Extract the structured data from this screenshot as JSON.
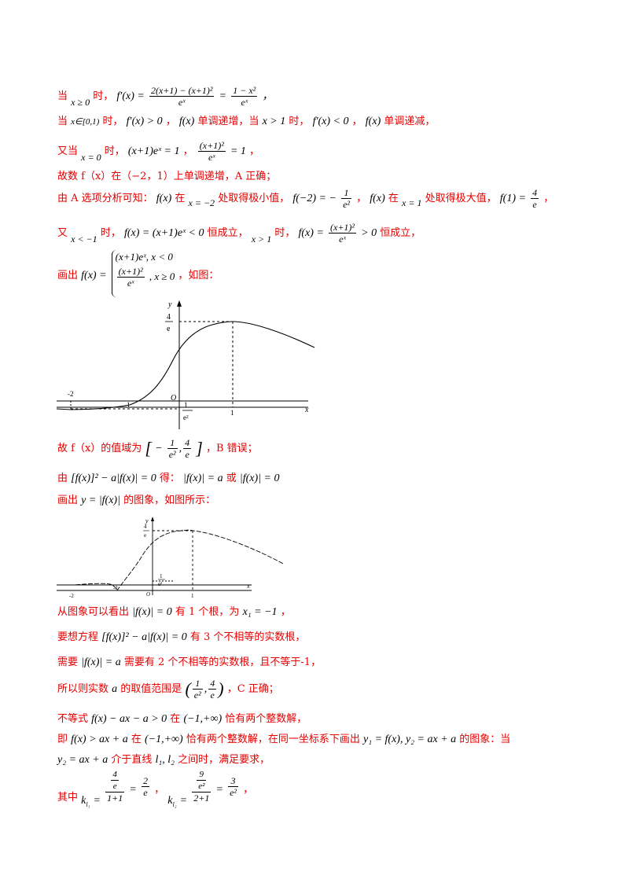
{
  "lines": {
    "l1_a": "当",
    "l1_cond": "x ≥ 0",
    "l1_b": "时，",
    "l1_expr": "f′(x) =",
    "l1_num1": "2(x+1) − (x+1)²",
    "l1_den1": "eˣ",
    "l1_eq": "=",
    "l1_num2": "1 − x²",
    "l1_den2": "eˣ",
    "l1_end": "，",
    "l2_a": "当",
    "l2_cond": "x∈[0,1)",
    "l2_b": "时，",
    "l2_expr1": "f′(x) > 0",
    "l2_c": "，",
    "l2_expr2": "f(x)",
    "l2_d": "单调递增，当",
    "l2_cond2": "x > 1",
    "l2_e": "时，",
    "l2_expr3": "f′(x) < 0",
    "l2_f": "，",
    "l2_expr4": "f(x)",
    "l2_g": "单调递减，",
    "l3_a": "又当",
    "l3_cond": "x = 0",
    "l3_b": "时，",
    "l3_expr1": "(x+1)eˣ = 1",
    "l3_c": "，",
    "l3_num": "(x+1)²",
    "l3_den": "eˣ",
    "l3_expr2": "= 1",
    "l3_d": "，",
    "l4": "故数 f（x）在（−2，1）上单调递增，A 正确；",
    "l5_a": "由 A 选项分析可知：",
    "l5_expr1": "f(x)",
    "l5_b": "在",
    "l5_cond1": "x = −2",
    "l5_c": "处取得极小值，",
    "l5_expr2": "f(−2) = −",
    "l5_num1": "1",
    "l5_den1": "e²",
    "l5_d": "，",
    "l5_expr3": "f(x)",
    "l5_e": "在",
    "l5_cond2": "x = 1",
    "l5_f": "处取得极大值，",
    "l5_expr4": "f(1) =",
    "l5_num2": "4",
    "l5_den2": "e",
    "l5_g": "，",
    "l6_a": "又",
    "l6_cond1": "x < −1",
    "l6_b": "时，",
    "l6_expr1": "f(x) = (x+1)eˣ < 0",
    "l6_c": "恒成立，",
    "l6_cond2": "x > 1",
    "l6_d": "时，",
    "l6_expr2": "f(x) =",
    "l6_num": "(x+1)²",
    "l6_den": "eˣ",
    "l6_expr3": "> 0",
    "l6_e": "恒成立，",
    "l7_a": "画出",
    "l7_expr": "f(x) =",
    "l7_case1": "(x+1)eˣ, x < 0",
    "l7_case2_num": "(x+1)²",
    "l7_case2_den": "eˣ",
    "l7_case2": ", x ≥ 0",
    "l7_b": "，如图：",
    "l8_a": "故 f（x）的值域为",
    "l8_num1": "1",
    "l8_den1": "e²",
    "l8_num2": "4",
    "l8_den2": "e",
    "l8_b": "，B 错误；",
    "l9_a": "由",
    "l9_expr1": "[f(x)]² − a|f(x)| = 0",
    "l9_b": "得：",
    "l9_expr2": "|f(x)| = a",
    "l9_c": "或",
    "l9_expr3": "|f(x)| = 0",
    "l10_a": "画出",
    "l10_expr": "y = |f(x)|",
    "l10_b": "的图象，如图所示：",
    "l11_a": "从图象可以看出",
    "l11_expr1": "|f(x)| = 0",
    "l11_b": "有 1 个根，为",
    "l11_expr2": "x₁ = −1",
    "l11_c": "，",
    "l12_a": "要想方程",
    "l12_expr": "[f(x)]² − a|f(x)| = 0",
    "l12_b": "有 3 个不相等的实数根，",
    "l13_a": "需要",
    "l13_expr": "|f(x)| = a",
    "l13_b": "需要有 2 个不相等的实数根，且不等于-1，",
    "l14_a": "所以则实数",
    "l14_var": "a",
    "l14_b": "的取值范围是",
    "l14_num1": "1",
    "l14_den1": "e²",
    "l14_num2": "4",
    "l14_den2": "e",
    "l14_c": "，C 正确；",
    "l15_a": "不等式",
    "l15_expr1": "f(x) − ax − a > 0",
    "l15_b": "在",
    "l15_expr2": "(−1,+∞)",
    "l15_c": "恰有两个整数解，",
    "l16_a": "即",
    "l16_expr1": "f(x) > ax + a",
    "l16_b": "在",
    "l16_expr2": "(−1,+∞)",
    "l16_c": "恰有两个整数解，在同一坐标系下画出",
    "l16_expr3": "y₁ = f(x), y₂ = ax + a",
    "l16_d": "的图象：当",
    "l17_expr1": "y₂ = ax + a",
    "l17_a": "介于直线",
    "l17_expr2": "l₁, l₂",
    "l17_b": "之间时，满足要求，",
    "l18_a": "其中",
    "l18_k1": "k",
    "l18_num1_top": "4",
    "l18_num1_bot": "e",
    "l18_den1": "1+1",
    "l18_eq1": "=",
    "l18_res1_num": "2",
    "l18_res1_den": "e",
    "l18_sep": "，",
    "l18_k2": "k",
    "l18_num2_top": "9",
    "l18_num2_bot": "e²",
    "l18_den2": "2+1",
    "l18_eq2": "=",
    "l18_res2_num": "3",
    "l18_res2_den": "e²",
    "l18_end": "，"
  },
  "graph1": {
    "y_axis_label": "y",
    "x_axis_label": "x",
    "y_tick_num": "4",
    "y_tick_den": "e",
    "origin_label": "O",
    "x_tick_neg2": "-2",
    "x_tick_neg1": "-1",
    "x_tick_1": "1",
    "min_num": "1",
    "min_den": "e²"
  },
  "graph2": {
    "y_axis_label": "y",
    "x_axis_label": "x",
    "y_tick_num": "4",
    "y_tick_den": "e",
    "origin_label": "O",
    "x_tick_neg2": "-2",
    "x_tick_neg1": "-1",
    "x_tick_1": "1",
    "min_num": "1",
    "min_den": "e²"
  },
  "colors": {
    "accent": "#e60000",
    "text": "#000000"
  }
}
